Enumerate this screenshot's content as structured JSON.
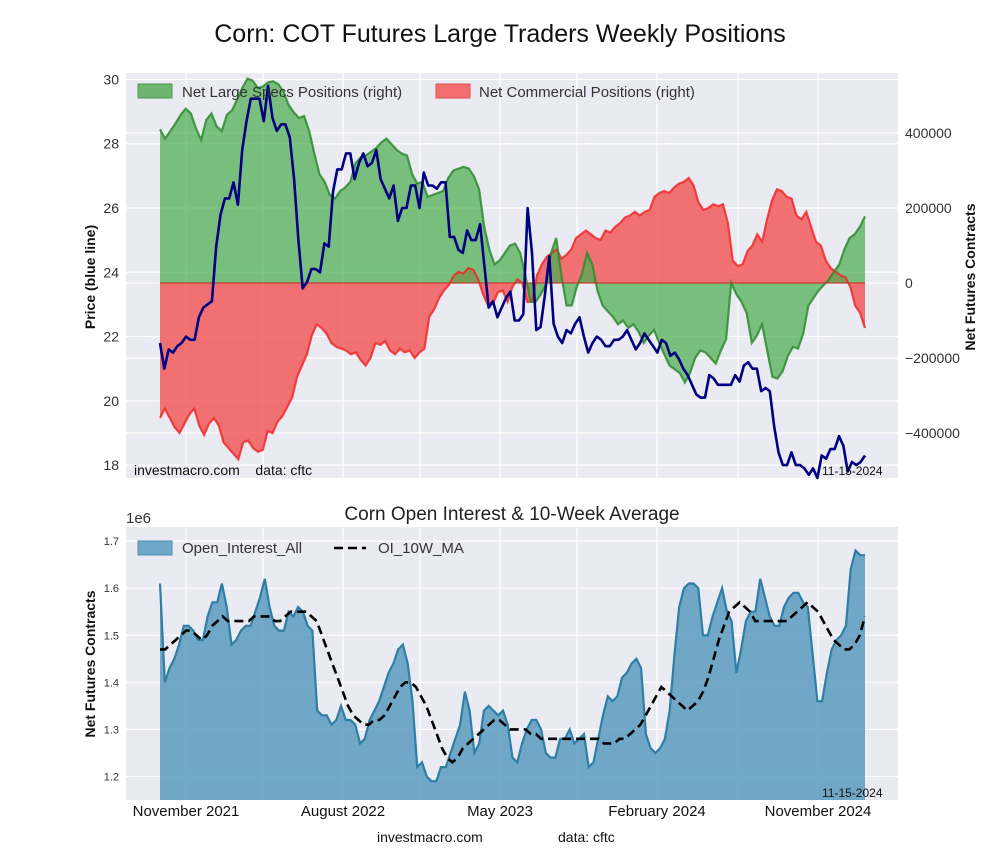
{
  "figure": {
    "title": "Corn: COT Futures Large Traders Weekly Positions",
    "footer_site": "investmacro.com",
    "footer_source": "data: cftc"
  },
  "chart_data": [
    {
      "type": "line+area",
      "title": "",
      "ylabel_left": "Price (blue line)",
      "ylabel_right": "Net Futures Contracts",
      "ylim_left": [
        17.6,
        30.2
      ],
      "ylim_right": [
        -520000,
        560000
      ],
      "left_ticks": [
        "18",
        "20",
        "22",
        "24",
        "26",
        "28",
        "30"
      ],
      "right_ticks": [
        "-400000",
        "-200000",
        "0",
        "200000",
        "400000"
      ],
      "grid": true,
      "legend_position": "top-left",
      "legend": [
        "Net Large Specs Positions (right)",
        "Net Commercial Positions (right)"
      ],
      "annotation_left": "investmacro.com    data: cftc",
      "annotation_right": "11-15-2024",
      "colors": {
        "price": "#000080",
        "specs": "#2e8b2e",
        "specs_fill": "#4caf50",
        "commercial": "#ee2a2a",
        "commercial_fill": "#f25c5c"
      },
      "x_weeks_start": "2021-10-05",
      "x_weeks_end": "2024-11-12",
      "series": [
        {
          "name": "Price",
          "axis": "left",
          "values": [
            21.8,
            21.0,
            21.6,
            21.5,
            21.7,
            21.8,
            22.0,
            21.9,
            21.9,
            22.6,
            22.9,
            23.0,
            23.1,
            24.8,
            25.8,
            26.3,
            26.3,
            26.8,
            26.1,
            27.8,
            28.7,
            29.4,
            29.4,
            29.4,
            28.7,
            29.8,
            28.8,
            28.4,
            28.6,
            28.6,
            28.2,
            26.9,
            25.0,
            23.5,
            23.7,
            24.1,
            24.1,
            24.0,
            24.9,
            24.8,
            26.5,
            27.2,
            27.2,
            27.7,
            27.7,
            26.9,
            27.4,
            27.7,
            27.3,
            27.4,
            27.8,
            26.9,
            26.6,
            26.3,
            26.7,
            25.6,
            26.0,
            26.0,
            26.7,
            26.7,
            26.0,
            27.1,
            26.7,
            26.7,
            26.6,
            26.8,
            26.8,
            25.1,
            25.1,
            24.7,
            24.6,
            25.3,
            25.0,
            25.0,
            25.5,
            24.2,
            22.9,
            23.1,
            22.6,
            22.9,
            23.2,
            23.4,
            22.5,
            22.5,
            22.7,
            26.0,
            24.6,
            22.2,
            22.3,
            23.3,
            24.5,
            22.4,
            22.0,
            21.8,
            22.2,
            22.1,
            22.4,
            22.6,
            22.0,
            21.5,
            21.8,
            22.0,
            21.9,
            21.7,
            21.7,
            21.9,
            21.9,
            22.0,
            22.2,
            21.9,
            21.6,
            21.8,
            22.1,
            21.9,
            21.7,
            21.5,
            21.9,
            21.8,
            21.4,
            21.5,
            21.3,
            21.0,
            20.8,
            20.5,
            20.2,
            20.1,
            20.1,
            20.8,
            20.7,
            20.5,
            20.5,
            20.5,
            20.5,
            20.8,
            20.6,
            21.1,
            21.2,
            21.0,
            21.0,
            20.3,
            20.4,
            20.3,
            19.2,
            18.4,
            18.0,
            18.0,
            18.4,
            18.0,
            18.0,
            17.9,
            17.7,
            17.9,
            17.6,
            18.3,
            18.2,
            18.5,
            18.5,
            18.9,
            18.6,
            17.8,
            18.1,
            18.0,
            18.1,
            18.3
          ],
          "note": "weekly closes read from chart"
        },
        {
          "name": "Net Large Specs Positions (right)",
          "axis": "right",
          "values": [
            410000,
            385000,
            405000,
            425000,
            448000,
            465000,
            452000,
            412000,
            382000,
            435000,
            452000,
            418000,
            405000,
            449000,
            460000,
            490000,
            520000,
            545000,
            540000,
            520000,
            524000,
            535000,
            538000,
            530000,
            510000,
            475000,
            455000,
            440000,
            445000,
            405000,
            345000,
            290000,
            270000,
            235000,
            225000,
            245000,
            255000,
            270000,
            320000,
            335000,
            340000,
            350000,
            360000,
            375000,
            385000,
            370000,
            355000,
            345000,
            340000,
            290000,
            265000,
            270000,
            230000,
            235000,
            240000,
            245000,
            280000,
            300000,
            305000,
            310000,
            305000,
            285000,
            250000,
            150000,
            90000,
            50000,
            60000,
            80000,
            100000,
            105000,
            80000,
            20000,
            -50000,
            -50000,
            -30000,
            -5000,
            80000,
            120000,
            20000,
            -60000,
            -60000,
            -10000,
            25000,
            80000,
            50000,
            -20000,
            -60000,
            -75000,
            -90000,
            -110000,
            -100000,
            -120000,
            -110000,
            -130000,
            -160000,
            -140000,
            -125000,
            -160000,
            -190000,
            -220000,
            -230000,
            -240000,
            -265000,
            -240000,
            -200000,
            -180000,
            -185000,
            -200000,
            -215000,
            -180000,
            -150000,
            0,
            -30000,
            -50000,
            -80000,
            -160000,
            -140000,
            -110000,
            -180000,
            -250000,
            -255000,
            -235000,
            -195000,
            -170000,
            -175000,
            -135000,
            -60000,
            -40000,
            -20000,
            -5000,
            10000,
            30000,
            50000,
            90000,
            120000,
            130000,
            150000,
            178000
          ],
          "note": "read from green area boundary"
        },
        {
          "name": "Net Commercial Positions (right)",
          "axis": "right",
          "values": [
            -360000,
            -335000,
            -360000,
            -385000,
            -400000,
            -375000,
            -350000,
            -335000,
            -380000,
            -405000,
            -375000,
            -360000,
            -380000,
            -425000,
            -440000,
            -455000,
            -470000,
            -425000,
            -420000,
            -440000,
            -450000,
            -445000,
            -395000,
            -400000,
            -370000,
            -355000,
            -330000,
            -305000,
            -250000,
            -220000,
            -190000,
            -140000,
            -110000,
            -120000,
            -135000,
            -160000,
            -170000,
            -175000,
            -180000,
            -190000,
            -185000,
            -205000,
            -220000,
            -200000,
            -160000,
            -165000,
            -155000,
            -180000,
            -190000,
            -175000,
            -185000,
            -180000,
            -200000,
            -185000,
            -175000,
            -90000,
            -70000,
            -40000,
            -20000,
            -5000,
            20000,
            30000,
            25000,
            40000,
            35000,
            10000,
            -30000,
            -60000,
            -55000,
            -25000,
            -20000,
            -50000,
            -10000,
            10000,
            0,
            -50000,
            -50000,
            20000,
            50000,
            70000,
            80000,
            90000,
            65000,
            75000,
            90000,
            120000,
            130000,
            140000,
            130000,
            120000,
            115000,
            140000,
            135000,
            150000,
            160000,
            175000,
            180000,
            190000,
            180000,
            190000,
            195000,
            230000,
            240000,
            245000,
            240000,
            255000,
            265000,
            270000,
            280000,
            260000,
            215000,
            195000,
            200000,
            210000,
            205000,
            210000,
            160000,
            60000,
            45000,
            50000,
            85000,
            100000,
            130000,
            110000,
            170000,
            220000,
            250000,
            245000,
            230000,
            225000,
            180000,
            170000,
            190000,
            150000,
            110000,
            100000,
            60000,
            40000,
            30000,
            20000,
            15000,
            -10000,
            -60000,
            -80000,
            -120000
          ],
          "note": "read from red area boundary"
        }
      ]
    },
    {
      "type": "area+line",
      "title": "Corn Open Interest & 10-Week Average",
      "ylabel": "Net Futures Contracts",
      "y_scale_label": "1e6",
      "ylim": [
        1.15,
        1.73
      ],
      "ytick_labels": [
        "1.2",
        "1.3",
        "1.4",
        "1.5",
        "1.6",
        "1.7"
      ],
      "xtick_labels": [
        "November 2021",
        "August 2022",
        "May 2023",
        "February 2024",
        "November 2024"
      ],
      "grid": true,
      "legend_position": "top-left",
      "legend": [
        "Open_Interest_All",
        "OI_10W_MA"
      ],
      "annotation_right": "11-15-2024",
      "colors": {
        "oi_line": "#2e7ea6",
        "oi_fill": "#5b9bbf",
        "ma": "#000000"
      },
      "series": [
        {
          "name": "Open_Interest_All",
          "values": [
            1.61,
            1.4,
            1.43,
            1.45,
            1.48,
            1.52,
            1.52,
            1.51,
            1.49,
            1.49,
            1.54,
            1.57,
            1.57,
            1.61,
            1.56,
            1.48,
            1.49,
            1.51,
            1.52,
            1.52,
            1.55,
            1.58,
            1.62,
            1.56,
            1.52,
            1.51,
            1.51,
            1.55,
            1.54,
            1.56,
            1.55,
            1.52,
            1.51,
            1.34,
            1.33,
            1.33,
            1.31,
            1.32,
            1.35,
            1.32,
            1.32,
            1.31,
            1.27,
            1.28,
            1.32,
            1.34,
            1.36,
            1.39,
            1.42,
            1.44,
            1.47,
            1.48,
            1.44,
            1.36,
            1.22,
            1.23,
            1.2,
            1.19,
            1.19,
            1.22,
            1.22,
            1.25,
            1.28,
            1.31,
            1.38,
            1.34,
            1.25,
            1.27,
            1.34,
            1.35,
            1.34,
            1.33,
            1.34,
            1.31,
            1.24,
            1.23,
            1.27,
            1.3,
            1.32,
            1.32,
            1.3,
            1.25,
            1.24,
            1.24,
            1.28,
            1.28,
            1.3,
            1.27,
            1.28,
            1.29,
            1.22,
            1.23,
            1.28,
            1.33,
            1.37,
            1.36,
            1.37,
            1.41,
            1.42,
            1.44,
            1.45,
            1.43,
            1.29,
            1.26,
            1.25,
            1.26,
            1.28,
            1.34,
            1.46,
            1.56,
            1.6,
            1.61,
            1.61,
            1.6,
            1.5,
            1.5,
            1.54,
            1.57,
            1.6,
            1.55,
            1.53,
            1.42,
            1.47,
            1.53,
            1.55,
            1.55,
            1.62,
            1.58,
            1.54,
            1.52,
            1.52,
            1.56,
            1.58,
            1.59,
            1.59,
            1.57,
            1.56,
            1.46,
            1.36,
            1.36,
            1.42,
            1.47,
            1.49,
            1.5,
            1.52,
            1.64,
            1.68,
            1.67,
            1.67
          ]
        },
        {
          "name": "OI_10W_MA",
          "values": [
            1.47,
            1.47,
            1.48,
            1.49,
            1.5,
            1.51,
            1.51,
            1.5,
            1.49,
            1.5,
            1.52,
            1.53,
            1.54,
            1.53,
            1.53,
            1.53,
            1.53,
            1.53,
            1.54,
            1.54,
            1.54,
            1.54,
            1.53,
            1.53,
            1.54,
            1.55,
            1.55,
            1.55,
            1.55,
            1.54,
            1.53,
            1.5,
            1.47,
            1.44,
            1.41,
            1.38,
            1.35,
            1.33,
            1.32,
            1.31,
            1.31,
            1.32,
            1.32,
            1.33,
            1.35,
            1.37,
            1.39,
            1.4,
            1.4,
            1.39,
            1.37,
            1.35,
            1.32,
            1.29,
            1.26,
            1.24,
            1.23,
            1.24,
            1.26,
            1.27,
            1.28,
            1.29,
            1.3,
            1.31,
            1.32,
            1.32,
            1.31,
            1.3,
            1.3,
            1.3,
            1.3,
            1.29,
            1.29,
            1.28,
            1.28,
            1.28,
            1.28,
            1.28,
            1.28,
            1.28,
            1.28,
            1.28,
            1.28,
            1.28,
            1.28,
            1.27,
            1.27,
            1.27,
            1.28,
            1.28,
            1.29,
            1.3,
            1.31,
            1.33,
            1.35,
            1.37,
            1.39,
            1.38,
            1.37,
            1.36,
            1.35,
            1.34,
            1.35,
            1.36,
            1.38,
            1.41,
            1.45,
            1.49,
            1.52,
            1.55,
            1.56,
            1.57,
            1.56,
            1.55,
            1.53,
            1.53,
            1.53,
            1.53,
            1.53,
            1.53,
            1.53,
            1.54,
            1.55,
            1.56,
            1.57,
            1.56,
            1.55,
            1.53,
            1.51,
            1.49,
            1.48,
            1.47,
            1.47,
            1.48,
            1.5,
            1.54
          ]
        }
      ]
    }
  ]
}
